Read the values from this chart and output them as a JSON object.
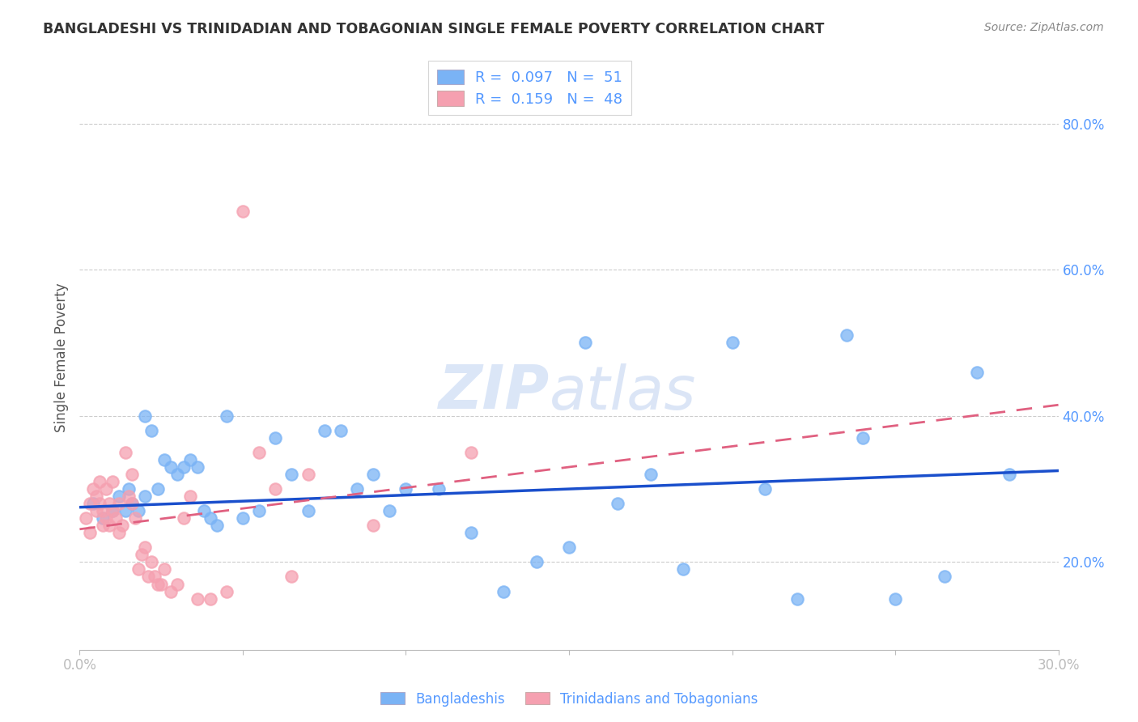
{
  "title": "BANGLADESHI VS TRINIDADIAN AND TOBAGONIAN SINGLE FEMALE POVERTY CORRELATION CHART",
  "source": "Source: ZipAtlas.com",
  "ylabel": "Single Female Poverty",
  "xlim": [
    0.0,
    0.3
  ],
  "ylim": [
    0.08,
    0.88
  ],
  "yticks": [
    0.2,
    0.4,
    0.6,
    0.8
  ],
  "xticks": [
    0.0,
    0.05,
    0.1,
    0.15,
    0.2,
    0.25,
    0.3
  ],
  "xtick_labels": [
    "0.0%",
    "",
    "",
    "",
    "",
    "",
    "30.0%"
  ],
  "ytick_labels": [
    "20.0%",
    "40.0%",
    "60.0%",
    "80.0%"
  ],
  "legend_label1": "Bangladeshis",
  "legend_label2": "Trinidadians and Tobagonians",
  "blue_color": "#7ab3f5",
  "pink_color": "#f5a0b0",
  "trend_blue": "#1a4fcc",
  "trend_pink": "#e06080",
  "watermark_color": "#ccdcf5",
  "grid_color": "#cccccc",
  "axis_color": "#5599ff",
  "title_color": "#333333",
  "source_color": "#888888",
  "ylabel_color": "#555555",
  "blue_scatter_x": [
    0.004,
    0.007,
    0.01,
    0.012,
    0.014,
    0.015,
    0.016,
    0.018,
    0.02,
    0.02,
    0.022,
    0.024,
    0.026,
    0.028,
    0.03,
    0.032,
    0.034,
    0.036,
    0.038,
    0.04,
    0.042,
    0.045,
    0.05,
    0.055,
    0.06,
    0.065,
    0.07,
    0.075,
    0.08,
    0.085,
    0.09,
    0.095,
    0.1,
    0.11,
    0.12,
    0.13,
    0.14,
    0.15,
    0.155,
    0.165,
    0.175,
    0.185,
    0.2,
    0.21,
    0.22,
    0.235,
    0.24,
    0.25,
    0.265,
    0.275,
    0.285
  ],
  "blue_scatter_y": [
    0.28,
    0.26,
    0.27,
    0.29,
    0.27,
    0.3,
    0.28,
    0.27,
    0.4,
    0.29,
    0.38,
    0.3,
    0.34,
    0.33,
    0.32,
    0.33,
    0.34,
    0.33,
    0.27,
    0.26,
    0.25,
    0.4,
    0.26,
    0.27,
    0.37,
    0.32,
    0.27,
    0.38,
    0.38,
    0.3,
    0.32,
    0.27,
    0.3,
    0.3,
    0.24,
    0.16,
    0.2,
    0.22,
    0.5,
    0.28,
    0.32,
    0.19,
    0.5,
    0.3,
    0.15,
    0.51,
    0.37,
    0.15,
    0.18,
    0.46,
    0.32
  ],
  "pink_scatter_x": [
    0.002,
    0.003,
    0.003,
    0.004,
    0.005,
    0.005,
    0.006,
    0.006,
    0.007,
    0.007,
    0.008,
    0.008,
    0.009,
    0.009,
    0.01,
    0.01,
    0.011,
    0.012,
    0.012,
    0.013,
    0.014,
    0.015,
    0.016,
    0.016,
    0.017,
    0.018,
    0.019,
    0.02,
    0.021,
    0.022,
    0.023,
    0.024,
    0.025,
    0.026,
    0.028,
    0.03,
    0.032,
    0.034,
    0.036,
    0.04,
    0.045,
    0.05,
    0.055,
    0.06,
    0.065,
    0.07,
    0.09,
    0.12
  ],
  "pink_scatter_y": [
    0.26,
    0.24,
    0.28,
    0.3,
    0.27,
    0.29,
    0.28,
    0.31,
    0.25,
    0.27,
    0.26,
    0.3,
    0.25,
    0.28,
    0.27,
    0.31,
    0.26,
    0.24,
    0.28,
    0.25,
    0.35,
    0.29,
    0.28,
    0.32,
    0.26,
    0.19,
    0.21,
    0.22,
    0.18,
    0.2,
    0.18,
    0.17,
    0.17,
    0.19,
    0.16,
    0.17,
    0.26,
    0.29,
    0.15,
    0.15,
    0.16,
    0.68,
    0.35,
    0.3,
    0.18,
    0.32,
    0.25,
    0.35
  ],
  "blue_trend_x0": 0.0,
  "blue_trend_x1": 0.3,
  "blue_trend_y0": 0.275,
  "blue_trend_y1": 0.325,
  "pink_trend_x0": 0.0,
  "pink_trend_x1": 0.3,
  "pink_trend_y0": 0.245,
  "pink_trend_y1": 0.415
}
